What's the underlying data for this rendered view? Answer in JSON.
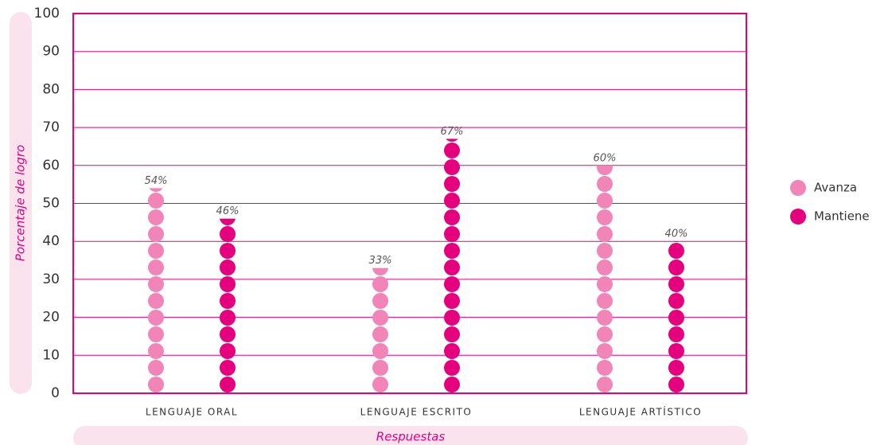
{
  "chart_data": {
    "type": "bar",
    "y_label": "Porcentaje de logro",
    "x_label": "Respuestas",
    "categories": [
      "LENGUAJE ORAL",
      "LENGUAJE ESCRITO",
      "LENGUAJE ARTÍSTICO"
    ],
    "series": [
      {
        "name": "Avanza",
        "color": "#f285b7",
        "values": [
          54,
          33,
          60
        ],
        "value_labels": [
          "54%",
          "33%",
          "60%"
        ]
      },
      {
        "name": "Mantiene",
        "color": "#e5007e",
        "values": [
          46,
          67,
          40
        ],
        "value_labels": [
          "46%",
          "67%",
          "40%"
        ]
      }
    ],
    "ylim": [
      0,
      100
    ],
    "yticks": [
      0,
      10,
      20,
      30,
      40,
      50,
      60,
      70,
      80,
      90,
      100
    ],
    "grid": true
  }
}
